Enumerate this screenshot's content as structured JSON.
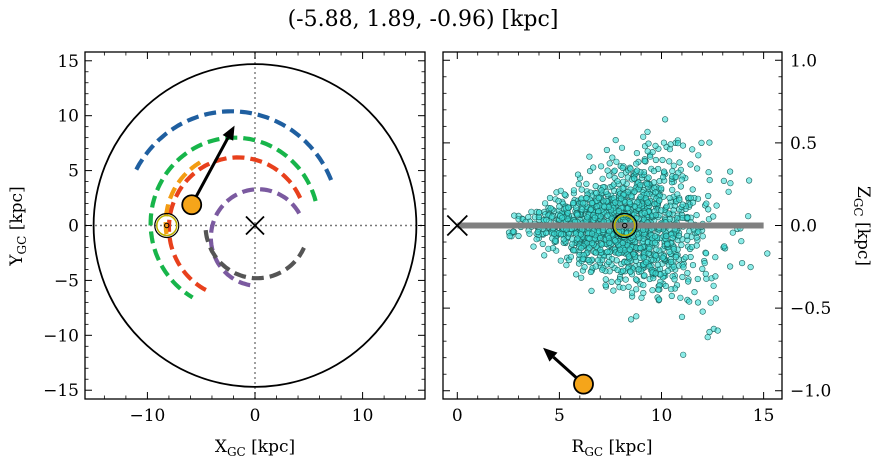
{
  "figure": {
    "title": "(-5.88, 1.89, -0.96) [kpc]"
  },
  "chart_data": [
    {
      "type": "scatter",
      "panel": "left",
      "xlabel": {
        "main": "X",
        "sub": "GC",
        "unit": " [kpc]"
      },
      "ylabel": {
        "main": "Y",
        "sub": "GC",
        "unit": " [kpc]"
      },
      "xlim": [
        -15.8,
        15.8
      ],
      "ylim": [
        -15.8,
        15.8
      ],
      "xticks": [
        -10,
        0,
        10
      ],
      "xtick_labels": [
        "−10",
        "0",
        "10"
      ],
      "yticks": [
        -15,
        -10,
        -5,
        0,
        5,
        10,
        15
      ],
      "ytick_labels": [
        "−15",
        "−10",
        "−5",
        "0",
        "5",
        "10",
        "15"
      ],
      "outer_circle_radius": 15,
      "galactic_center": [
        0,
        0
      ],
      "sun": [
        -8.2,
        0
      ],
      "object": [
        -5.88,
        1.89
      ],
      "velocity_arrow_tip": [
        -1.9,
        9.1
      ],
      "arms": [
        {
          "color": "#1f5fa0",
          "radius": 10.0,
          "from_deg": 22,
          "to_deg": 152,
          "width": 4
        },
        {
          "color": "#17b54a",
          "radius": 8.0,
          "from_deg": 22,
          "to_deg": 248,
          "width": 4
        },
        {
          "color": "#f39c12",
          "radius": 6.4,
          "from_deg": 108,
          "to_deg": 195,
          "width": 4
        },
        {
          "color": "#e8401c",
          "radius": 6.0,
          "from_deg": 30,
          "to_deg": 240,
          "width": 4
        },
        {
          "color": "#7b5aa0",
          "radius": 4.2,
          "from_deg": 50,
          "to_deg": 240,
          "width": 4
        },
        {
          "color": "#555555",
          "radius": 5.0,
          "from_deg": 0,
          "to_deg": 10,
          "width": 4,
          "note": "dashed grey"
        }
      ],
      "colors": {
        "sun_ring": "#bdb000",
        "object": "#f5a51a"
      }
    },
    {
      "type": "scatter",
      "panel": "right",
      "xlabel": {
        "main": "R",
        "sub": "GC",
        "unit": " [kpc]"
      },
      "ylabel": {
        "main": "Z",
        "sub": "GC",
        "unit": " [kpc]"
      },
      "xlim": [
        -0.7,
        15.9
      ],
      "ylim": [
        -1.05,
        1.05
      ],
      "xticks": [
        0,
        5,
        10,
        15
      ],
      "xtick_labels": [
        "0",
        "5",
        "10",
        "15"
      ],
      "yticks": [
        -1.0,
        -0.5,
        0.0,
        0.5,
        1.0
      ],
      "ytick_labels": [
        "−1.0",
        "−0.5",
        "0.0",
        "0.5",
        "1.0"
      ],
      "disk_line": {
        "from": 0,
        "to": 15,
        "z": 0,
        "color": "#808080"
      },
      "galactic_center": [
        0,
        0
      ],
      "sun": [
        8.2,
        0
      ],
      "object": [
        6.18,
        -0.96
      ],
      "velocity_arrow_tip": [
        4.2,
        -0.74
      ],
      "star_cloud": {
        "count": 1500,
        "center_r": 8.2,
        "color": "#3de0d8",
        "edge": "#1a5f5a"
      },
      "colors": {
        "sun_ring": "#bdb000",
        "object": "#f5a51a"
      }
    }
  ]
}
